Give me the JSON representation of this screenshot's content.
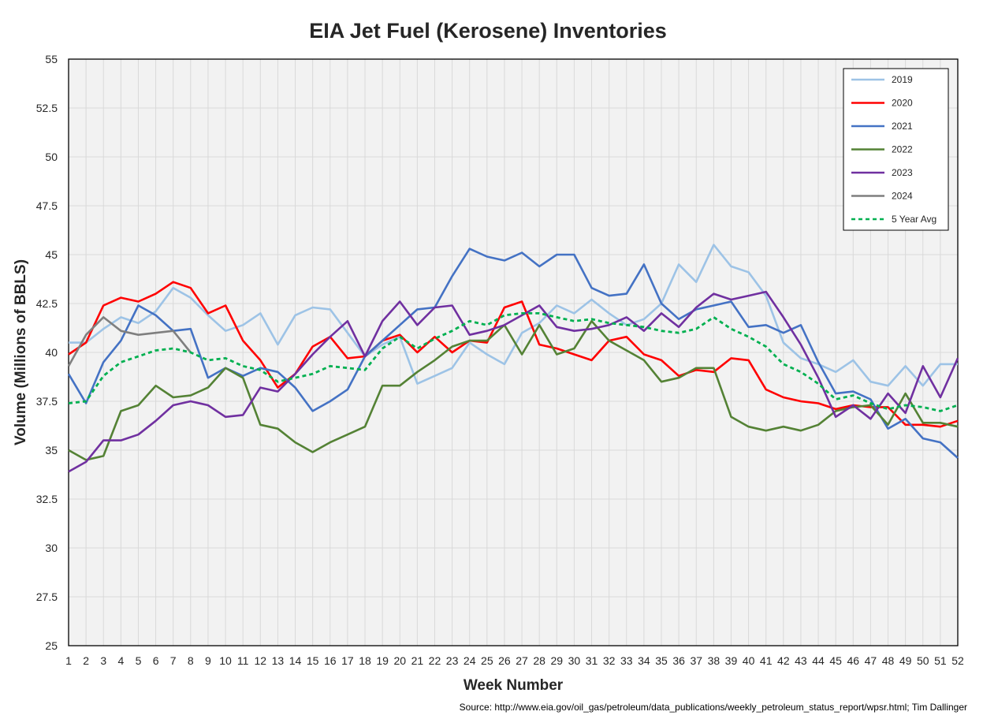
{
  "chart_data": {
    "type": "line",
    "title": "EIA Jet Fuel (Kerosene) Inventories",
    "xlabel": "Week Number",
    "ylabel": "Volume (Millions of BBLS)",
    "source": "Source: http://www.eia.gov/oil_gas/petroleum/data_publications/weekly_petroleum_status_report/wpsr.html; Tim Dallinger",
    "x": [
      1,
      2,
      3,
      4,
      5,
      6,
      7,
      8,
      9,
      10,
      11,
      12,
      13,
      14,
      15,
      16,
      17,
      18,
      19,
      20,
      21,
      22,
      23,
      24,
      25,
      26,
      27,
      28,
      29,
      30,
      31,
      32,
      33,
      34,
      35,
      36,
      37,
      38,
      39,
      40,
      41,
      42,
      43,
      44,
      45,
      46,
      47,
      48,
      49,
      50,
      51,
      52
    ],
    "xlim": [
      1,
      52
    ],
    "ylim": [
      25,
      55
    ],
    "yticks": [
      25,
      27.5,
      30,
      32.5,
      35,
      37.5,
      40,
      42.5,
      45,
      47.5,
      50,
      52.5,
      55
    ],
    "ytick_labels": [
      "25",
      "27.5",
      "30",
      "32.5",
      "35",
      "37.5",
      "40",
      "42.5",
      "45",
      "47.5",
      "50",
      "52.5",
      "55"
    ],
    "grid": true,
    "legend_position": "top-right",
    "series": [
      {
        "name": "2019",
        "color": "#9dc3e6",
        "dash": "solid",
        "values": [
          40.5,
          40.5,
          41.2,
          41.8,
          41.5,
          42.1,
          43.3,
          42.8,
          41.9,
          41.1,
          41.4,
          42.0,
          40.4,
          41.9,
          42.3,
          42.2,
          41.0,
          39.8,
          40.4,
          40.8,
          38.4,
          38.8,
          39.2,
          40.5,
          39.9,
          39.4,
          41.0,
          41.5,
          42.4,
          42.0,
          42.7,
          42.0,
          41.4,
          41.7,
          42.5,
          44.5,
          43.6,
          45.5,
          44.4,
          44.1,
          42.9,
          40.5,
          39.7,
          39.4,
          39.0,
          39.6,
          38.5,
          38.3,
          39.3,
          38.3,
          39.4,
          39.4
        ]
      },
      {
        "name": "2020",
        "color": "#ff0000",
        "dash": "solid",
        "values": [
          39.9,
          40.5,
          42.4,
          42.8,
          42.6,
          43.0,
          43.6,
          43.3,
          42.0,
          42.4,
          40.6,
          39.6,
          38.2,
          38.9,
          40.3,
          40.8,
          39.7,
          39.8,
          40.6,
          40.9,
          40.0,
          40.8,
          40.0,
          40.6,
          40.5,
          42.3,
          42.6,
          40.4,
          40.2,
          39.9,
          39.6,
          40.6,
          40.8,
          39.9,
          39.6,
          38.8,
          39.1,
          39.0,
          39.7,
          39.6,
          38.1,
          37.7,
          37.5,
          37.4,
          37.1,
          37.3,
          37.2,
          37.2,
          36.3,
          36.3,
          36.2,
          36.5
        ]
      },
      {
        "name": "2021",
        "color": "#4472c4",
        "dash": "solid",
        "values": [
          38.9,
          37.4,
          39.5,
          40.6,
          42.4,
          41.9,
          41.1,
          41.2,
          38.7,
          39.2,
          38.8,
          39.2,
          39.0,
          38.2,
          37.0,
          37.5,
          38.1,
          39.8,
          40.6,
          41.4,
          42.2,
          42.3,
          43.9,
          45.3,
          44.9,
          44.7,
          45.1,
          44.4,
          45.0,
          45.0,
          43.3,
          42.9,
          43.0,
          44.5,
          42.5,
          41.7,
          42.2,
          42.4,
          42.6,
          41.3,
          41.4,
          41.0,
          41.4,
          39.5,
          37.9,
          38.0,
          37.6,
          36.1,
          36.6,
          35.6,
          35.4,
          34.6
        ]
      },
      {
        "name": "2022",
        "color": "#548235",
        "dash": "solid",
        "values": [
          35.0,
          34.5,
          34.7,
          37.0,
          37.3,
          38.3,
          37.7,
          37.8,
          38.2,
          39.2,
          38.7,
          36.3,
          36.1,
          35.4,
          34.9,
          35.4,
          35.8,
          36.2,
          38.3,
          38.3,
          39.0,
          39.6,
          40.3,
          40.6,
          40.6,
          41.4,
          39.9,
          41.4,
          39.9,
          40.2,
          41.6,
          40.6,
          40.1,
          39.6,
          38.5,
          38.7,
          39.2,
          39.2,
          36.7,
          36.2,
          36.0,
          36.2,
          36.0,
          36.3,
          37.0,
          37.2,
          37.3,
          36.3,
          37.9,
          36.4,
          36.4,
          36.2
        ]
      },
      {
        "name": "2023",
        "color": "#7030a0",
        "dash": "solid",
        "values": [
          33.9,
          34.4,
          35.5,
          35.5,
          35.8,
          36.5,
          37.3,
          37.5,
          37.3,
          36.7,
          36.8,
          38.2,
          38.0,
          38.9,
          39.9,
          40.8,
          41.6,
          39.8,
          41.6,
          42.6,
          41.4,
          42.3,
          42.4,
          40.9,
          41.1,
          41.4,
          41.9,
          42.4,
          41.3,
          41.1,
          41.2,
          41.4,
          41.8,
          41.1,
          42.0,
          41.3,
          42.3,
          43.0,
          42.7,
          42.9,
          43.1,
          41.8,
          40.4,
          38.7,
          36.7,
          37.3,
          36.6,
          37.9,
          36.9,
          39.3,
          37.7,
          39.7
        ]
      },
      {
        "name": "2024",
        "color": "#7f7f7f",
        "dash": "solid",
        "values": [
          39.3,
          40.9,
          41.8,
          41.1,
          40.9,
          41.0,
          41.1,
          40.0,
          null,
          null,
          null,
          null,
          null,
          null,
          null,
          null,
          null,
          null,
          null,
          null,
          null,
          null,
          null,
          null,
          null,
          null,
          null,
          null,
          null,
          null,
          null,
          null,
          null,
          null,
          null,
          null,
          null,
          null,
          null,
          null,
          null,
          null,
          null,
          null,
          null,
          null,
          null,
          null,
          null,
          null,
          null,
          null
        ]
      },
      {
        "name": "5 Year Avg",
        "color": "#00b050",
        "dash": "dashed",
        "values": [
          37.4,
          37.5,
          38.8,
          39.5,
          39.8,
          40.1,
          40.2,
          40.0,
          39.6,
          39.7,
          39.3,
          39.1,
          38.5,
          38.7,
          38.9,
          39.3,
          39.2,
          39.1,
          40.2,
          40.8,
          40.2,
          40.7,
          41.1,
          41.6,
          41.4,
          41.9,
          42.0,
          42.0,
          41.8,
          41.6,
          41.7,
          41.5,
          41.4,
          41.3,
          41.1,
          41.0,
          41.2,
          41.8,
          41.2,
          40.8,
          40.3,
          39.4,
          39.0,
          38.4,
          37.6,
          37.8,
          37.4,
          37.1,
          37.3,
          37.2,
          37.0,
          37.3
        ]
      }
    ]
  }
}
